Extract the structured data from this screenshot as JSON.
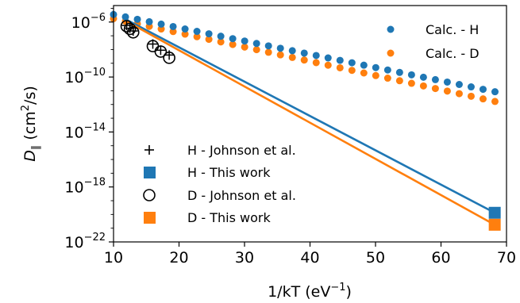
{
  "chart_data": {
    "type": "scatter",
    "xlabel": "1/kT (eV",
    "xlabel_sup": "−1",
    "xlabel_end": ")",
    "ylabel_main": "D",
    "ylabel_sub": "∥",
    "ylabel_rest": " (cm",
    "ylabel_sup": "2",
    "ylabel_end": "/s)",
    "xlim": [
      10,
      70
    ],
    "ylim_log10": [
      -22,
      -4.8
    ],
    "y_scale": "log",
    "grid": false,
    "x_ticks": [
      {
        "value": 10,
        "label": "10"
      },
      {
        "value": 20,
        "label": "20"
      },
      {
        "value": 30,
        "label": "30"
      },
      {
        "value": 40,
        "label": "40"
      },
      {
        "value": 50,
        "label": "50"
      },
      {
        "value": 60,
        "label": "60"
      },
      {
        "value": 70,
        "label": "70"
      }
    ],
    "y_ticks": [
      {
        "exp": -6,
        "label_base": "10",
        "label_exp": "−6"
      },
      {
        "exp": -10,
        "label_base": "10",
        "label_exp": "−10"
      },
      {
        "exp": -14,
        "label_base": "10",
        "label_exp": "−14"
      },
      {
        "exp": -18,
        "label_base": "10",
        "label_exp": "−18"
      },
      {
        "exp": -22,
        "label_base": "10",
        "label_exp": "−22"
      }
    ],
    "colors": {
      "H": "#1f77b4",
      "D": "#ff7f0e"
    },
    "calc_H": {
      "name": "Calc. - H",
      "x_start": 10.0,
      "x_step": 1.82,
      "count": 33,
      "log10_at_x10": -5.45,
      "log10_slope": -0.0965
    },
    "calc_D": {
      "name": "Calc. - D",
      "x_start": 10.0,
      "x_step": 1.82,
      "count": 33,
      "log10_at_x10": -5.75,
      "log10_slope": -0.1035
    },
    "line_H": {
      "name": "H - This work",
      "x": [
        12,
        68.2
      ],
      "log10_y": [
        -5.84,
        -19.88
      ]
    },
    "line_D": {
      "name": "D - This work",
      "x": [
        12,
        68.2
      ],
      "log10_y": [
        -5.95,
        -20.75
      ]
    },
    "this_work_H": {
      "x": 68.2,
      "log10_y": -19.88
    },
    "this_work_D": {
      "x": 68.2,
      "log10_y": -20.75
    },
    "johnson_H": {
      "name": "H - Johnson et al.",
      "x": [
        12.0,
        12.5,
        13.0,
        16.0,
        17.2,
        18.5
      ],
      "log10_y": [
        -6.25,
        -6.45,
        -6.65,
        -7.6,
        -8.05,
        -8.4
      ]
    },
    "johnson_D": {
      "name": "D - Johnson et al.",
      "x": [
        12.0,
        12.5,
        13.0,
        16.0,
        17.2,
        18.5
      ],
      "log10_y": [
        -6.3,
        -6.5,
        -6.75,
        -7.75,
        -8.15,
        -8.6
      ]
    },
    "legend_top": {
      "placement": "upper-right",
      "items": [
        {
          "label": "Calc. - H",
          "series": "H"
        },
        {
          "label": "Calc. - D",
          "series": "D"
        }
      ]
    },
    "legend_bottom": {
      "placement": "lower-left",
      "items": [
        {
          "label": "H - Johnson et al.",
          "marker": "plus"
        },
        {
          "label": "H - This work",
          "marker": "square-H"
        },
        {
          "label": "D - Johnson et al.",
          "marker": "circle"
        },
        {
          "label": "D - This work",
          "marker": "square-D"
        }
      ]
    }
  }
}
